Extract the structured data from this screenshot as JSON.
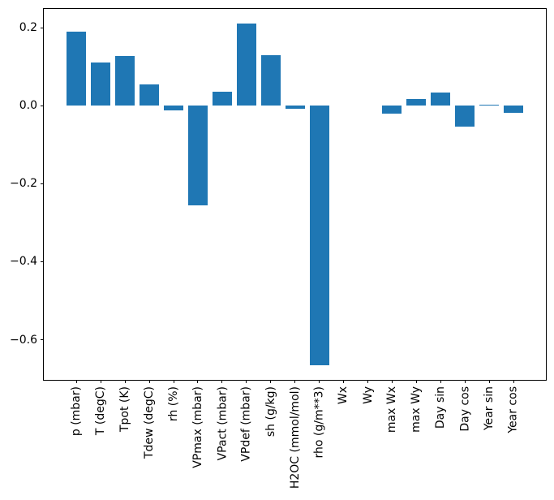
{
  "chart_data": {
    "type": "bar",
    "title": "",
    "xlabel": "",
    "ylabel": "",
    "grid": false,
    "legend": null,
    "bar_color": "#1f77b4",
    "axis_color": "#000000",
    "background_color": "#ffffff",
    "categories": [
      "p (mbar)",
      "T (degC)",
      "Tpot (K)",
      "Tdew (degC)",
      "rh (%)",
      "VPmax (mbar)",
      "VPact (mbar)",
      "VPdef (mbar)",
      "sh (g/kg)",
      "H2OC (mmol/mol)",
      "rho (g/m**3)",
      "Wx",
      "Wy",
      "max Wx",
      "max Wy",
      "Day sin",
      "Day cos",
      "Year sin",
      "Year cos"
    ],
    "values": [
      0.19,
      0.11,
      0.128,
      0.055,
      -0.012,
      -0.255,
      0.035,
      0.21,
      0.13,
      -0.008,
      -0.665,
      0.0,
      0.0,
      -0.021,
      0.017,
      0.033,
      -0.053,
      0.0025,
      -0.018
    ],
    "ylim": [
      -0.704,
      0.25
    ],
    "yticks": {
      "values": [
        0.2,
        0.0,
        -0.2,
        -0.4,
        -0.6
      ],
      "labels": [
        "0.2",
        "0.0",
        "−0.2",
        "−0.4",
        "−0.6"
      ]
    },
    "xtick_label_rotation_deg": 90
  }
}
